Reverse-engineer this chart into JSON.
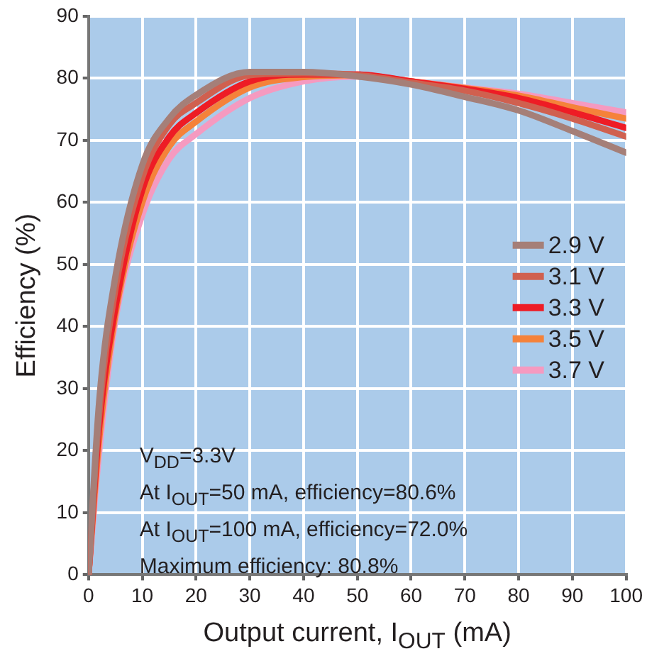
{
  "chart_data": {
    "type": "line",
    "xlabel": "Output current, I$_{OUT}$ (mA)",
    "ylabel": "Efficiency (%)",
    "x": [
      0,
      2,
      5,
      10,
      15,
      20,
      30,
      40,
      50,
      60,
      70,
      80,
      90,
      100
    ],
    "series": [
      {
        "name": "2.9 V",
        "color": "#a57f78",
        "values": [
          0,
          28,
          48,
          66,
          73.5,
          77.3,
          81,
          81,
          80.3,
          79,
          77,
          74.8,
          71.5,
          68
        ]
      },
      {
        "name": "3.1 V",
        "color": "#d0604f",
        "values": [
          0,
          26,
          46,
          64,
          72.5,
          76,
          80.5,
          80.8,
          80.5,
          79.3,
          78,
          76,
          73.5,
          70.6
        ]
      },
      {
        "name": "3.3 V",
        "color": "#ee1c25",
        "values": [
          0,
          24,
          43,
          62,
          70.5,
          74.4,
          79.5,
          80.6,
          80.6,
          79.5,
          78.3,
          76.8,
          74.5,
          72
        ]
      },
      {
        "name": "3.5 V",
        "color": "#f5823a",
        "values": [
          0,
          22,
          42,
          60,
          69,
          73,
          78.5,
          80.2,
          80.5,
          79.5,
          78.4,
          77.2,
          75.3,
          73.5
        ]
      },
      {
        "name": "3.7 V",
        "color": "#f59ac0",
        "values": [
          0,
          20,
          41,
          58,
          67,
          71,
          76.8,
          79.5,
          80.3,
          79.5,
          78.5,
          77.5,
          76,
          74.5
        ]
      }
    ],
    "xlim": [
      0,
      100
    ],
    "xticks": [
      0,
      10,
      20,
      30,
      40,
      50,
      60,
      70,
      80,
      90,
      100
    ],
    "ylim": [
      0,
      90
    ],
    "yticks": [
      0,
      10,
      20,
      30,
      40,
      50,
      60,
      70,
      80,
      90
    ],
    "grid": true,
    "legend": "right",
    "marker": "none",
    "line_style": "solid",
    "annotations": [
      "V$_{DD}$=3.3V",
      "At I$_{OUT}$=50 mA, efficiency=80.6%",
      "At I$_{OUT}$=100 mA, efficiency=72.0%",
      "Maximum efficiency: 80.8%"
    ]
  }
}
